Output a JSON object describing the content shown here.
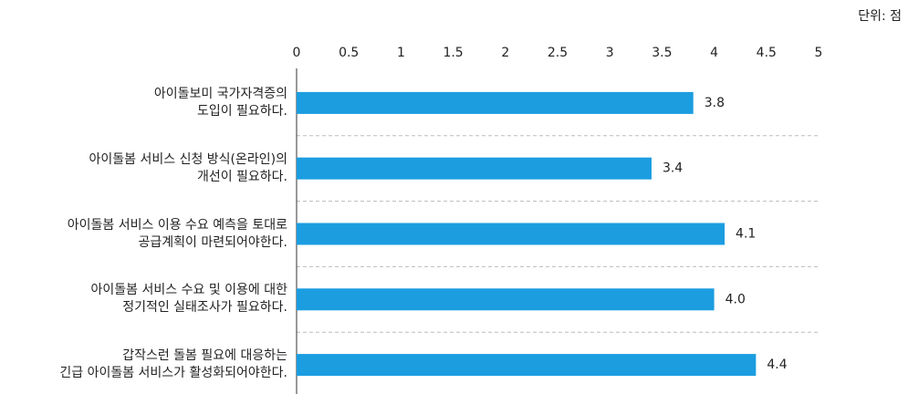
{
  "chart_data": {
    "type": "bar",
    "orientation": "horizontal",
    "unit_label": "단위: 점",
    "categories": [
      "아이돌보미 국가자격증의\n도입이 필요하다.",
      "아이돌봄 서비스 신청 방식(온라인)의\n개선이 필요하다.",
      "아이돌봄 서비스 이용 수요 예측을 토대로\n공급계획이 마련되어야한다.",
      "아이돌봄 서비스 수요 및 이용에 대한\n정기적인 실태조사가 필요하다.",
      "갑작스런 돌봄 필요에 대응하는\n긴급 아이돌봄 서비스가 활성화되어야한다."
    ],
    "values": [
      3.8,
      3.4,
      4.1,
      4.0,
      4.4
    ],
    "value_labels": [
      "3.8",
      "3.4",
      "4.1",
      "4.0",
      "4.4"
    ],
    "color": "#1b9de0",
    "xlim": [
      0,
      5
    ],
    "xticks": [
      0,
      0.5,
      1,
      1.5,
      2,
      2.5,
      3,
      3.5,
      4,
      4.5,
      5
    ]
  }
}
